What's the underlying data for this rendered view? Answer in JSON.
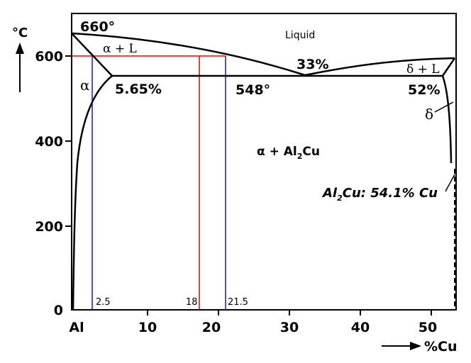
{
  "figure": {
    "temperature_unit": "°C",
    "composition_axis_label": "%Cu",
    "y_ticks": [
      "0",
      "200",
      "400",
      "600"
    ],
    "x_ticks": [
      "Al",
      "10",
      "20",
      "30",
      "40",
      "50"
    ],
    "labels": {
      "melting_point": "660°",
      "liquid": "Liquid",
      "alpha_liquid": "α + L",
      "delta_liquid": "δ + L",
      "alpha": "α",
      "delta": "δ",
      "alpha_al2cu_prefix": "α + Al",
      "alpha_al2cu_sub": "2",
      "alpha_al2cu_suffix": "Cu",
      "eutectic_composition": "33%",
      "eutectic_temperature": "548°",
      "alpha_solubility": "5.65%",
      "delta_solubility": "52%",
      "compound_prefix": "Al",
      "compound_sub": "2",
      "compound_suffix": "Cu: 54.1% Cu",
      "line_2_5": "2.5",
      "line_18": "18",
      "line_21_5": "21.5"
    }
  },
  "chart_data": {
    "type": "phase-diagram",
    "x_unit": "%Cu",
    "y_unit": "°C",
    "xlim": [
      0,
      54
    ],
    "ylim": [
      0,
      700
    ],
    "x_ticks": [
      0,
      10,
      20,
      30,
      40,
      50
    ],
    "y_ticks": [
      0,
      200,
      400,
      600
    ],
    "points": {
      "al_melting": [
        0,
        660
      ],
      "eutectic": [
        33,
        548
      ],
      "alpha_max_solubility": [
        5.65,
        548
      ],
      "delta_solubility": [
        52,
        548
      ],
      "compound": [
        54.1,
        0
      ]
    },
    "reference_lines": {
      "isotherm_600": 600,
      "red_composition": 18,
      "blue_compositions": [
        2.5,
        21.5
      ]
    },
    "colors": {
      "red": "#e00000",
      "blue": "#1a1aa8",
      "boundary": "#000000"
    }
  }
}
